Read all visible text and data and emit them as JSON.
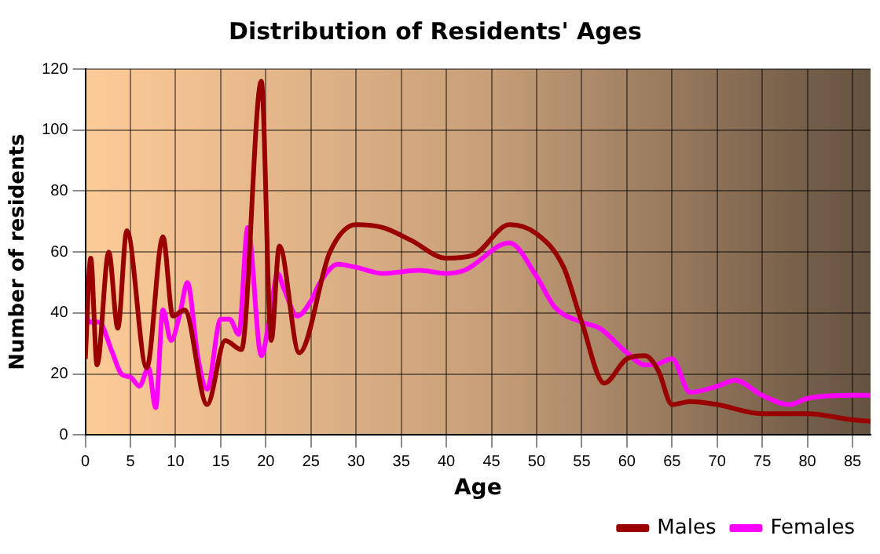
{
  "chart_data": {
    "type": "line",
    "title": "Distribution of Residents' Ages",
    "xlabel": "Age",
    "ylabel": "Number of residents",
    "xlim": [
      0,
      87
    ],
    "xticks": [
      0,
      5,
      10,
      15,
      20,
      25,
      30,
      35,
      40,
      45,
      50,
      55,
      60,
      65,
      70,
      75,
      80,
      85
    ],
    "ylim": [
      0,
      120
    ],
    "yticks": [
      0,
      20,
      40,
      60,
      80,
      100,
      120
    ],
    "grid": true,
    "legend": "bottom right",
    "marker": "none",
    "line_style": "solid",
    "series": [
      {
        "name": "Males",
        "color": "#990000",
        "x": [
          0,
          0.6,
          1.3,
          2.6,
          3.6,
          4.6,
          6.8,
          8.6,
          9.7,
          11,
          13.5,
          15.5,
          17.3,
          19.5,
          20.6,
          21.5,
          23.7,
          27.1,
          30,
          33,
          36,
          40,
          43,
          47,
          50,
          53,
          55,
          57.5,
          60,
          62,
          63.5,
          65,
          67,
          70,
          75,
          80,
          85,
          87
        ],
        "values": [
          25,
          58,
          23,
          60,
          35,
          67,
          22,
          65,
          39,
          41,
          10,
          31,
          28,
          116,
          31,
          62,
          27,
          60,
          69,
          68,
          64,
          58,
          59,
          69,
          66,
          55,
          37,
          17,
          25,
          26,
          21,
          10,
          11,
          10,
          7,
          7,
          5,
          4.5
        ]
      },
      {
        "name": "Females",
        "color": "#ff00ff",
        "x": [
          0,
          0.5,
          1.5,
          3,
          4,
          5,
          6,
          7,
          7.8,
          8.6,
          9.5,
          10.5,
          11.3,
          12.5,
          13.5,
          15,
          16,
          17,
          18,
          19.5,
          20.5,
          21.3,
          22,
          23.5,
          25,
          26,
          28,
          30,
          33,
          37,
          40,
          42,
          47,
          50,
          52,
          55,
          57,
          60,
          62,
          63,
          65,
          67,
          70,
          72,
          75,
          78,
          80,
          85,
          87
        ],
        "values": [
          40,
          37,
          37,
          27,
          20,
          19,
          16,
          22,
          9,
          41,
          31,
          40,
          50,
          25,
          15,
          38,
          38,
          33,
          68,
          26,
          40,
          53,
          48,
          39,
          44,
          50,
          56,
          55,
          53,
          54,
          53,
          54,
          63,
          52,
          42,
          37,
          35,
          27,
          23,
          23,
          25,
          14,
          16,
          18,
          13,
          10,
          12,
          13,
          13
        ]
      }
    ]
  }
}
